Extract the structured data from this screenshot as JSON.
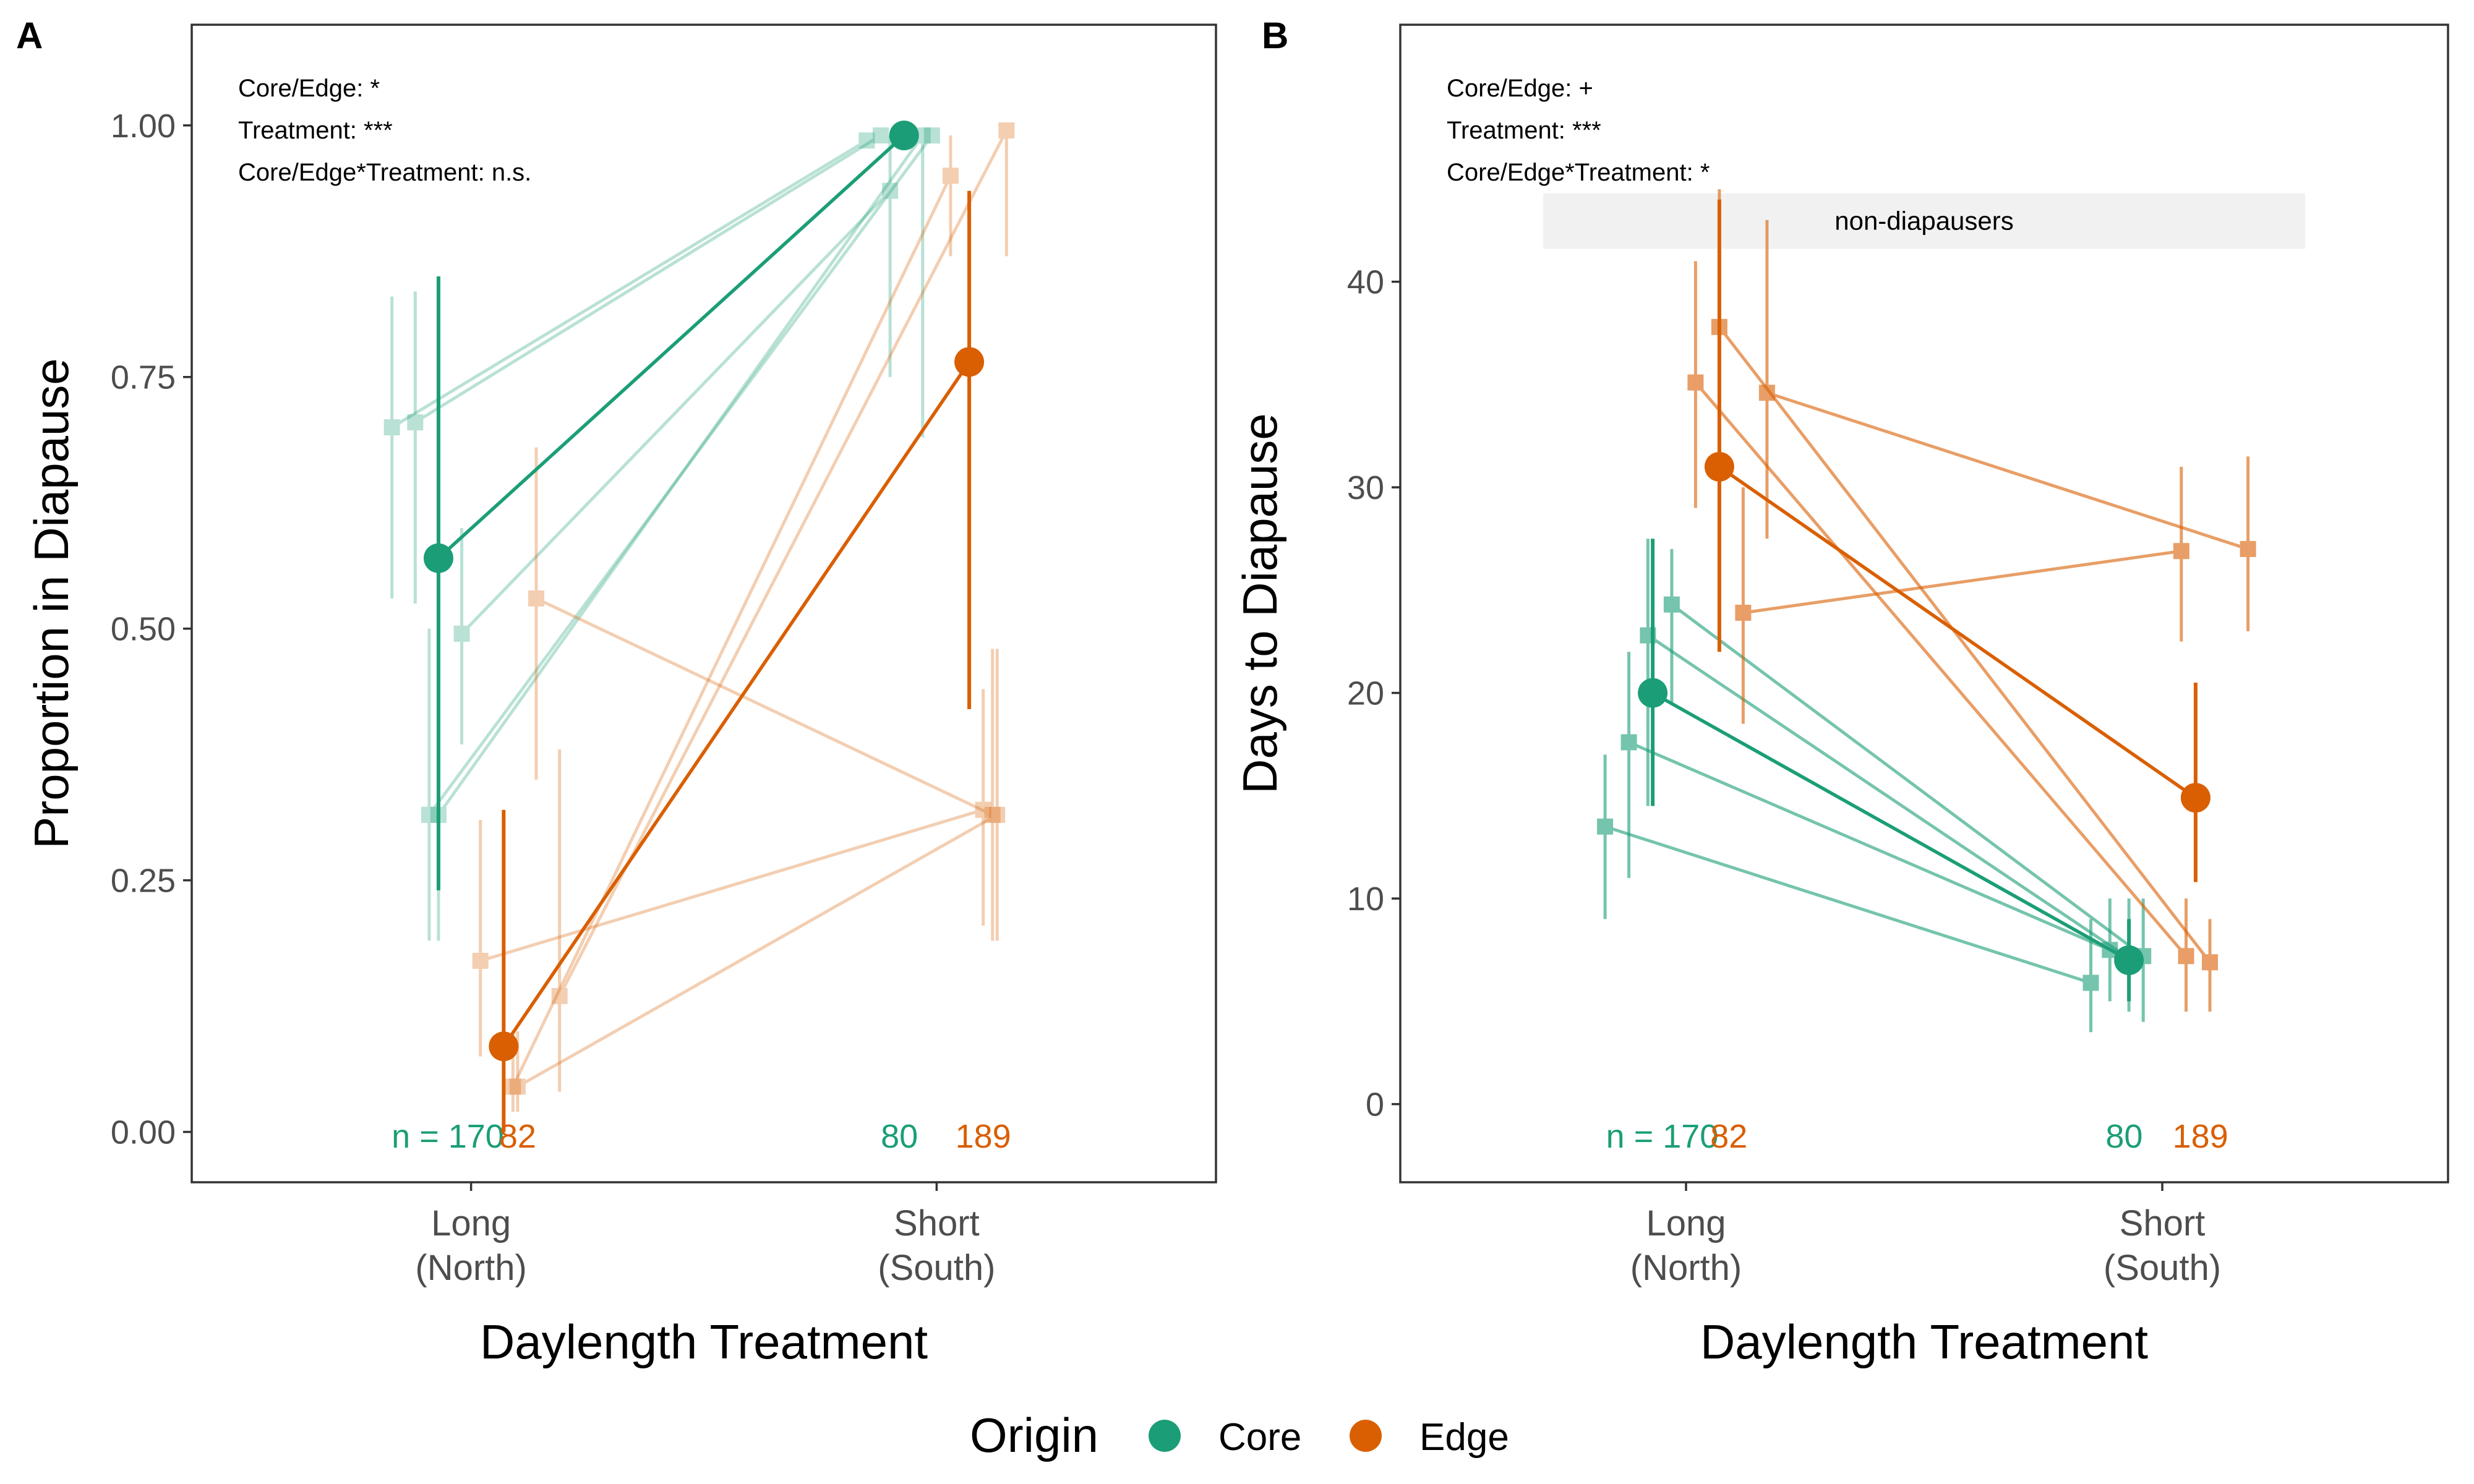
{
  "colors": {
    "core": "#1b9e77",
    "edge": "#d95f02",
    "axis": "#333333",
    "tick_text": "#4d4d4d",
    "band": "#ebebeb"
  },
  "legend": {
    "title": "Origin",
    "items": [
      {
        "label": "Core",
        "color": "#1b9e77"
      },
      {
        "label": "Edge",
        "color": "#d95f02"
      }
    ]
  },
  "chart_data": [
    {
      "panel": "A",
      "type": "scatter",
      "ylabel": "Proportion in Diapause",
      "xlabel": "Daylength Treatment",
      "categories": [
        [
          "Long",
          "(North)"
        ],
        [
          "Short",
          "(South)"
        ]
      ],
      "ylim": [
        -0.05,
        1.1
      ],
      "yticks": [
        0.0,
        0.25,
        0.5,
        0.75,
        1.0
      ],
      "ytick_labels": [
        "0.00",
        "0.25",
        "0.50",
        "0.75",
        "1.00"
      ],
      "annotations": [
        "Core/Edge: *",
        "Treatment: ***",
        "Core/Edge*Treatment: n.s."
      ],
      "n_labels": [
        {
          "text": "n = 170",
          "x": 0.95,
          "series": "core"
        },
        {
          "text": "82",
          "x": 1.1,
          "series": "edge"
        },
        {
          "text": "80",
          "x": 1.92,
          "series": "core"
        },
        {
          "text": "189",
          "x": 2.1,
          "series": "edge"
        }
      ],
      "means": [
        {
          "series": "core",
          "x": [
            0.93,
            1.93
          ],
          "y": [
            0.57,
            0.99
          ],
          "lo": [
            0.24,
            0.99
          ],
          "hi": [
            0.85,
            0.99
          ]
        },
        {
          "series": "edge",
          "x": [
            1.07,
            2.07
          ],
          "y": [
            0.085,
            0.765
          ],
          "lo": [
            0.0,
            0.42
          ],
          "hi": [
            0.32,
            0.935
          ]
        }
      ],
      "populations": [
        {
          "series": "core",
          "x": [
            0.83,
            1.85
          ],
          "y": [
            0.7,
            0.985
          ],
          "lo": [
            0.53,
            0.985
          ],
          "hi": [
            0.83,
            0.985
          ]
        },
        {
          "series": "core",
          "x": [
            0.88,
            1.88
          ],
          "y": [
            0.705,
            0.99
          ],
          "lo": [
            0.525,
            0.99
          ],
          "hi": [
            0.835,
            0.99
          ]
        },
        {
          "series": "core",
          "x": [
            0.98,
            1.9
          ],
          "y": [
            0.495,
            0.935
          ],
          "lo": [
            0.385,
            0.75
          ],
          "hi": [
            0.6,
            0.99
          ]
        },
        {
          "series": "core",
          "x": [
            0.93,
            1.97
          ],
          "y": [
            0.315,
            0.99
          ],
          "lo": [
            0.19,
            0.69
          ],
          "hi": [
            0.5,
            0.99
          ]
        },
        {
          "series": "core",
          "x": [
            0.91,
            1.99
          ],
          "y": [
            0.315,
            0.99
          ],
          "lo": [
            0.19,
            0.99
          ],
          "hi": [
            0.5,
            0.99
          ]
        },
        {
          "series": "edge",
          "x": [
            1.02,
            2.1
          ],
          "y": [
            0.17,
            0.32
          ],
          "lo": [
            0.075,
            0.205
          ],
          "hi": [
            0.31,
            0.44
          ]
        },
        {
          "series": "edge",
          "x": [
            1.09,
            2.03
          ],
          "y": [
            0.045,
            0.95
          ],
          "lo": [
            0.02,
            0.87
          ],
          "hi": [
            0.1,
            0.99
          ]
        },
        {
          "series": "edge",
          "x": [
            1.14,
            2.12
          ],
          "y": [
            0.53,
            0.315
          ],
          "lo": [
            0.35,
            0.19
          ],
          "hi": [
            0.68,
            0.48
          ]
        },
        {
          "series": "edge",
          "x": [
            1.19,
            2.15
          ],
          "y": [
            0.135,
            0.995
          ],
          "lo": [
            0.04,
            0.87
          ],
          "hi": [
            0.38,
            0.995
          ]
        },
        {
          "series": "edge",
          "x": [
            1.1,
            2.13
          ],
          "y": [
            0.045,
            0.315
          ],
          "lo": [
            0.02,
            0.19
          ],
          "hi": [
            0.1,
            0.48
          ]
        }
      ]
    },
    {
      "panel": "B",
      "type": "scatter",
      "ylabel": "Days to Diapause",
      "xlabel": "Daylength Treatment",
      "categories": [
        [
          "Long",
          "(North)"
        ],
        [
          "Short",
          "(South)"
        ]
      ],
      "ylim": [
        -3.8,
        52.5
      ],
      "yticks": [
        0,
        10,
        20,
        30,
        40
      ],
      "ytick_labels": [
        "0",
        "10",
        "20",
        "30",
        "40"
      ],
      "annotations": [
        "Core/Edge: +",
        "Treatment: ***",
        "Core/Edge*Treatment: *"
      ],
      "band": {
        "label": "non-diapausers",
        "y_range": [
          41.6,
          44.3
        ],
        "x_range": [
          0.7,
          2.3
        ]
      },
      "n_labels": [
        {
          "text": "n = 170",
          "x": 0.95,
          "series": "core"
        },
        {
          "text": "82",
          "x": 1.09,
          "series": "edge"
        },
        {
          "text": "80",
          "x": 1.92,
          "series": "core"
        },
        {
          "text": "189",
          "x": 2.08,
          "series": "edge"
        }
      ],
      "means": [
        {
          "series": "core",
          "x": [
            0.93,
            1.93
          ],
          "y": [
            20.0,
            7.0
          ],
          "lo": [
            14.5,
            5.0
          ],
          "hi": [
            27.5,
            9.0
          ]
        },
        {
          "series": "edge",
          "x": [
            1.07,
            2.07
          ],
          "y": [
            31.0,
            14.9
          ],
          "lo": [
            22.0,
            10.8
          ],
          "hi": [
            44.0,
            20.5
          ]
        }
      ],
      "populations": [
        {
          "series": "core",
          "x": [
            0.83,
            1.85
          ],
          "y": [
            13.5,
            5.9
          ],
          "lo": [
            9.0,
            3.5
          ],
          "hi": [
            17.0,
            9.0
          ]
        },
        {
          "series": "core",
          "x": [
            0.88,
            1.89
          ],
          "y": [
            17.6,
            7.5
          ],
          "lo": [
            11.0,
            5.0
          ],
          "hi": [
            22.0,
            10.0
          ]
        },
        {
          "series": "core",
          "x": [
            0.92,
            1.93
          ],
          "y": [
            22.8,
            7.1
          ],
          "lo": [
            14.5,
            4.5
          ],
          "hi": [
            27.5,
            10.0
          ]
        },
        {
          "series": "core",
          "x": [
            0.97,
            1.96
          ],
          "y": [
            24.3,
            7.2
          ],
          "lo": [
            19.5,
            4.0
          ],
          "hi": [
            27.0,
            10.0
          ]
        },
        {
          "series": "edge",
          "x": [
            1.02,
            2.05
          ],
          "y": [
            35.1,
            7.2
          ],
          "lo": [
            29.0,
            4.5
          ],
          "hi": [
            41.0,
            10.0
          ]
        },
        {
          "series": "edge",
          "x": [
            1.07,
            2.1
          ],
          "y": [
            37.8,
            6.9
          ],
          "lo": [
            30.0,
            4.5
          ],
          "hi": [
            44.5,
            9.0
          ]
        },
        {
          "series": "edge",
          "x": [
            1.12,
            2.04
          ],
          "y": [
            23.9,
            26.9
          ],
          "lo": [
            18.5,
            22.5
          ],
          "hi": [
            30.0,
            31.0
          ]
        },
        {
          "series": "edge",
          "x": [
            1.17,
            2.18
          ],
          "y": [
            34.6,
            27.0
          ],
          "lo": [
            27.5,
            23.0
          ],
          "hi": [
            43.0,
            31.5
          ]
        }
      ]
    }
  ]
}
